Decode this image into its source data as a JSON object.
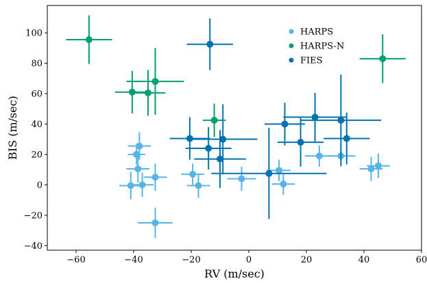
{
  "chart_data": {
    "type": "scatter",
    "xlabel": "RV (m/sec)",
    "ylabel": "BIS (m/sec)",
    "xlim": [
      -70,
      60
    ],
    "ylim": [
      -43,
      118
    ],
    "xticks": [
      -60,
      -40,
      -20,
      0,
      20,
      40,
      60
    ],
    "yticks": [
      -40,
      -20,
      0,
      20,
      40,
      60,
      80,
      100
    ],
    "xtick_labels": [
      "−60",
      "−40",
      "−20",
      "0",
      "20",
      "40",
      "60"
    ],
    "ytick_labels": [
      "−40",
      "−20",
      "0",
      "20",
      "40",
      "60",
      "80",
      "100"
    ],
    "grid": false,
    "legend_position": "top-right",
    "series": [
      {
        "name": "HARPS",
        "color": "#56b4e9",
        "points": [
          {
            "x": -38,
            "y": 25.5,
            "xerr": 4,
            "yerr": 9
          },
          {
            "x": -39,
            "y": 20,
            "xerr": 3,
            "yerr": 7
          },
          {
            "x": -38.5,
            "y": 10.5,
            "xerr": 4,
            "yerr": 9
          },
          {
            "x": -41,
            "y": -0.5,
            "xerr": 4,
            "yerr": 9
          },
          {
            "x": -37,
            "y": 0,
            "xerr": 4,
            "yerr": 8
          },
          {
            "x": -32.5,
            "y": 5,
            "xerr": 4,
            "yerr": 9
          },
          {
            "x": -32.5,
            "y": -25,
            "xerr": 6,
            "yerr": 10
          },
          {
            "x": -19.5,
            "y": 7,
            "xerr": 4,
            "yerr": 7
          },
          {
            "x": -17.5,
            "y": -0.5,
            "xerr": 4,
            "yerr": 8
          },
          {
            "x": -2.5,
            "y": 4,
            "xerr": 5,
            "yerr": 8
          },
          {
            "x": 10.5,
            "y": 9.5,
            "xerr": 4,
            "yerr": 7
          },
          {
            "x": 12,
            "y": 0.5,
            "xerr": 4,
            "yerr": 7
          },
          {
            "x": 24.5,
            "y": 19,
            "xerr": 5,
            "yerr": 7
          },
          {
            "x": 32,
            "y": 19,
            "xerr": 5,
            "yerr": 7
          },
          {
            "x": 42.5,
            "y": 10.5,
            "xerr": 4,
            "yerr": 8
          },
          {
            "x": 45,
            "y": 12.5,
            "xerr": 4,
            "yerr": 8
          }
        ]
      },
      {
        "name": "HARPS-N",
        "color": "#009e73",
        "points": [
          {
            "x": -55.5,
            "y": 95.5,
            "xerr": 8,
            "yerr": 16
          },
          {
            "x": -40.5,
            "y": 61,
            "xerr": 6,
            "yerr": 14
          },
          {
            "x": -35,
            "y": 60.5,
            "xerr": 6,
            "yerr": 15
          },
          {
            "x": -32.5,
            "y": 68,
            "xerr": 10,
            "yerr": 22
          },
          {
            "x": -12,
            "y": 42.5,
            "xerr": 4,
            "yerr": 11
          },
          {
            "x": 46.5,
            "y": 83,
            "xerr": 8,
            "yerr": 16
          }
        ]
      },
      {
        "name": "FIES",
        "color": "#0072b2",
        "points": [
          {
            "x": -13.5,
            "y": 92.5,
            "xerr": 8,
            "yerr": 17
          },
          {
            "x": -20.5,
            "y": 30.5,
            "xerr": 7,
            "yerr": 14
          },
          {
            "x": -14,
            "y": 24,
            "xerr": 8,
            "yerr": 14
          },
          {
            "x": -9,
            "y": 30,
            "xerr": 12,
            "yerr": 23
          },
          {
            "x": -10,
            "y": 17,
            "xerr": 9,
            "yerr": 19
          },
          {
            "x": 7,
            "y": 7.5,
            "xerr": 20,
            "yerr": 30
          },
          {
            "x": 12.5,
            "y": 40,
            "xerr": 7,
            "yerr": 14
          },
          {
            "x": 18,
            "y": 28,
            "xerr": 8,
            "yerr": 16
          },
          {
            "x": 23,
            "y": 44.5,
            "xerr": 11,
            "yerr": 16
          },
          {
            "x": 32,
            "y": 42.5,
            "xerr": 14,
            "yerr": 30
          },
          {
            "x": 34,
            "y": 30.5,
            "xerr": 8,
            "yerr": 17
          }
        ]
      }
    ]
  }
}
